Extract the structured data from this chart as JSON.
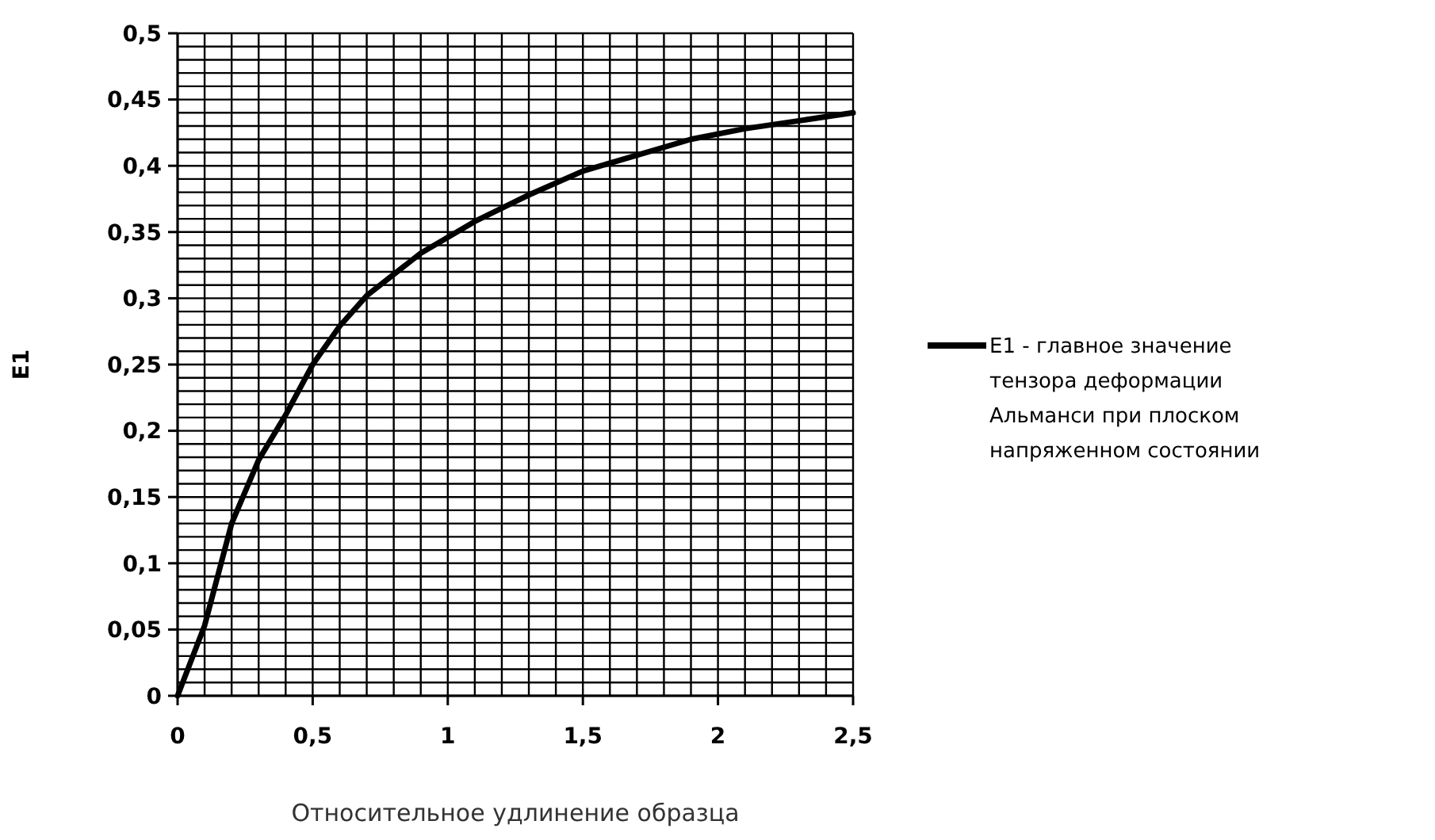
{
  "chart_data": {
    "type": "line",
    "xlabel": "Относительное удлинение образца",
    "ylabel": "E1",
    "series": [
      {
        "name": "E1 - главное значение тензора деформации Альманси при плоском напряженном состоянии",
        "color": "#000000",
        "x": [
          0,
          0.1,
          0.2,
          0.3,
          0.4,
          0.5,
          0.6,
          0.7,
          0.9,
          1.1,
          1.3,
          1.5,
          1.7,
          1.9,
          2.1,
          2.3,
          2.5
        ],
        "values": [
          0,
          0.053,
          0.13,
          0.178,
          0.212,
          0.25,
          0.279,
          0.302,
          0.334,
          0.358,
          0.378,
          0.396,
          0.408,
          0.42,
          0.428,
          0.434,
          0.44
        ]
      }
    ],
    "xlim": [
      0,
      2.5
    ],
    "xticks": [
      {
        "value": 0,
        "label": "0"
      },
      {
        "value": 0.1,
        "label": null
      },
      {
        "value": 0.2,
        "label": null
      },
      {
        "value": 0.3,
        "label": null
      },
      {
        "value": 0.4,
        "label": null
      },
      {
        "value": 0.5,
        "label": "0,5"
      },
      {
        "value": 0.6,
        "label": null
      },
      {
        "value": 0.7,
        "label": null
      },
      {
        "value": 0.8,
        "label": null
      },
      {
        "value": 0.9,
        "label": null
      },
      {
        "value": 1,
        "label": "1"
      },
      {
        "value": 1.1,
        "label": null
      },
      {
        "value": 1.2,
        "label": null
      },
      {
        "value": 1.3,
        "label": null
      },
      {
        "value": 1.4,
        "label": null
      },
      {
        "value": 1.5,
        "label": "1,5"
      },
      {
        "value": 1.6,
        "label": null
      },
      {
        "value": 1.7,
        "label": null
      },
      {
        "value": 1.8,
        "label": null
      },
      {
        "value": 1.9,
        "label": null
      },
      {
        "value": 2,
        "label": "2"
      },
      {
        "value": 2.1,
        "label": null
      },
      {
        "value": 2.2,
        "label": null
      },
      {
        "value": 2.3,
        "label": null
      },
      {
        "value": 2.4,
        "label": null
      },
      {
        "value": 2.5,
        "label": "2,5"
      }
    ],
    "ylim": [
      0,
      0.5
    ],
    "yticks": [
      {
        "value": 0,
        "label": "0"
      },
      {
        "value": 0.01,
        "label": null
      },
      {
        "value": 0.02,
        "label": null
      },
      {
        "value": 0.03,
        "label": null
      },
      {
        "value": 0.04,
        "label": null
      },
      {
        "value": 0.05,
        "label": "0,05"
      },
      {
        "value": 0.06,
        "label": null
      },
      {
        "value": 0.07,
        "label": null
      },
      {
        "value": 0.08,
        "label": null
      },
      {
        "value": 0.09,
        "label": null
      },
      {
        "value": 0.1,
        "label": "0,1"
      },
      {
        "value": 0.11,
        "label": null
      },
      {
        "value": 0.12,
        "label": null
      },
      {
        "value": 0.13,
        "label": null
      },
      {
        "value": 0.14,
        "label": null
      },
      {
        "value": 0.15,
        "label": "0,15"
      },
      {
        "value": 0.16,
        "label": null
      },
      {
        "value": 0.17,
        "label": null
      },
      {
        "value": 0.18,
        "label": null
      },
      {
        "value": 0.19,
        "label": null
      },
      {
        "value": 0.2,
        "label": "0,2"
      },
      {
        "value": 0.21,
        "label": null
      },
      {
        "value": 0.22,
        "label": null
      },
      {
        "value": 0.23,
        "label": null
      },
      {
        "value": 0.24,
        "label": null
      },
      {
        "value": 0.25,
        "label": "0,25"
      },
      {
        "value": 0.26,
        "label": null
      },
      {
        "value": 0.27,
        "label": null
      },
      {
        "value": 0.28,
        "label": null
      },
      {
        "value": 0.29,
        "label": null
      },
      {
        "value": 0.3,
        "label": "0,3"
      },
      {
        "value": 0.31,
        "label": null
      },
      {
        "value": 0.32,
        "label": null
      },
      {
        "value": 0.33,
        "label": null
      },
      {
        "value": 0.34,
        "label": null
      },
      {
        "value": 0.35,
        "label": "0,35"
      },
      {
        "value": 0.36,
        "label": null
      },
      {
        "value": 0.37,
        "label": null
      },
      {
        "value": 0.38,
        "label": null
      },
      {
        "value": 0.39,
        "label": null
      },
      {
        "value": 0.4,
        "label": "0,4"
      },
      {
        "value": 0.41,
        "label": null
      },
      {
        "value": 0.42,
        "label": null
      },
      {
        "value": 0.43,
        "label": null
      },
      {
        "value": 0.44,
        "label": null
      },
      {
        "value": 0.45,
        "label": "0,45"
      },
      {
        "value": 0.46,
        "label": null
      },
      {
        "value": 0.47,
        "label": null
      },
      {
        "value": 0.48,
        "label": null
      },
      {
        "value": 0.49,
        "label": null
      },
      {
        "value": 0.5,
        "label": "0,5"
      }
    ],
    "grid": true,
    "legend": "right",
    "line_style": "solid"
  }
}
